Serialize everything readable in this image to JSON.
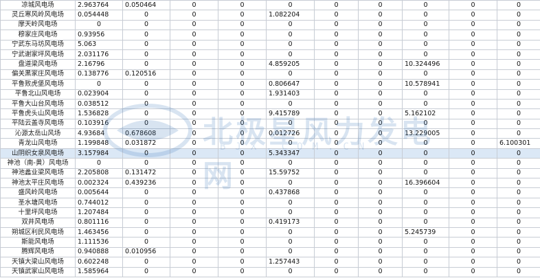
{
  "rows": [
    {
      "name": "凉城风电场",
      "c2": "2.963764",
      "c3": "0.050464",
      "c4": "0",
      "c5": "0",
      "c6": "0",
      "c7": "0",
      "c8": "0",
      "c9": "0",
      "c10": "0",
      "c11": "0"
    },
    {
      "name": "灵丘寒风岭风电场",
      "c2": "0.054448",
      "c3": "0",
      "c4": "0",
      "c5": "0",
      "c6": "1.082204",
      "c7": "0",
      "c8": "0",
      "c9": "0",
      "c10": "0",
      "c11": "0"
    },
    {
      "name": "摩天岭风电场",
      "c2": "0",
      "c3": "0",
      "c4": "0",
      "c5": "0",
      "c6": "0",
      "c7": "0",
      "c8": "0",
      "c9": "0",
      "c10": "0",
      "c11": "0"
    },
    {
      "name": "穆家庄风电场",
      "c2": "0.93956",
      "c3": "0",
      "c4": "0",
      "c5": "0",
      "c6": "0",
      "c7": "0",
      "c8": "0",
      "c9": "0",
      "c10": "0",
      "c11": "0"
    },
    {
      "name": "宁武东马坊风电场",
      "c2": "5.063",
      "c3": "0",
      "c4": "0",
      "c5": "0",
      "c6": "0",
      "c7": "0",
      "c8": "0",
      "c9": "0",
      "c10": "0",
      "c11": "0"
    },
    {
      "name": "宁武谢家坪风电场",
      "c2": "2.031176",
      "c3": "0",
      "c4": "0",
      "c5": "0",
      "c6": "0",
      "c7": "0",
      "c8": "0",
      "c9": "0",
      "c10": "0",
      "c11": "0"
    },
    {
      "name": "盘道梁风电场",
      "c2": "2.16796",
      "c3": "0",
      "c4": "0",
      "c5": "0",
      "c6": "4.859205",
      "c7": "0",
      "c8": "0",
      "c9": "10.324496",
      "c10": "0",
      "c11": "0"
    },
    {
      "name": "偏关黑家庄风电场",
      "c2": "0.138776",
      "c3": "0.120516",
      "c4": "0",
      "c5": "0",
      "c6": "0",
      "c7": "0",
      "c8": "0",
      "c9": "0",
      "c10": "0",
      "c11": "0"
    },
    {
      "name": "平鲁败虎堡风电场",
      "c2": "0",
      "c3": "0",
      "c4": "0",
      "c5": "0",
      "c6": "0.806647",
      "c7": "0",
      "c8": "0",
      "c9": "10.578941",
      "c10": "0",
      "c11": "0"
    },
    {
      "name": "平鲁北山风电场",
      "c2": "0.023904",
      "c3": "0",
      "c4": "0",
      "c5": "0",
      "c6": "1.931403",
      "c7": "0",
      "c8": "0",
      "c9": "0",
      "c10": "0",
      "c11": "0"
    },
    {
      "name": "平鲁大山台风电场",
      "c2": "0.038512",
      "c3": "0",
      "c4": "0",
      "c5": "0",
      "c6": "0",
      "c7": "0",
      "c8": "0",
      "c9": "0",
      "c10": "0",
      "c11": "0"
    },
    {
      "name": "平鲁虎头山风电场",
      "c2": "1.536828",
      "c3": "0",
      "c4": "0",
      "c5": "0",
      "c6": "9.415789",
      "c7": "0",
      "c8": "0",
      "c9": "5.162102",
      "c10": "0",
      "c11": "0"
    },
    {
      "name": "平陆云盖寺风电场",
      "c2": "0.103916",
      "c3": "0",
      "c4": "0",
      "c5": "0",
      "c6": "0",
      "c7": "0",
      "c8": "0",
      "c9": "0",
      "c10": "0",
      "c11": "0"
    },
    {
      "name": "沁源太岳山风场",
      "c2": "4.93684",
      "c3": "0.678608",
      "c4": "0",
      "c5": "0",
      "c6": "0.012726",
      "c7": "0",
      "c8": "0",
      "c9": "13.229005",
      "c10": "0",
      "c11": "0"
    },
    {
      "name": "青龙山风电场",
      "c2": "1.199848",
      "c3": "0.031872",
      "c4": "0",
      "c5": "0",
      "c6": "0",
      "c7": "0",
      "c8": "0",
      "c9": "0",
      "c10": "0",
      "c11": "6.100301"
    },
    {
      "name": "山阴织女泉风电场",
      "c2": "3.157984",
      "c3": "0",
      "c4": "0",
      "c5": "0",
      "c6": "5.343347",
      "c7": "0",
      "c8": "0",
      "c9": "0",
      "c10": "0",
      "c11": "0"
    },
    {
      "name": "神池（南-黄）风电场",
      "c2": "0",
      "c3": "0",
      "c4": "0",
      "c5": "0",
      "c6": "0",
      "c7": "0",
      "c8": "0",
      "c9": "0",
      "c10": "0",
      "c11": "0"
    },
    {
      "name": "神池蠡业梁风电场",
      "c2": "2.205808",
      "c3": "0.131472",
      "c4": "0",
      "c5": "0",
      "c6": "15.59752",
      "c7": "0",
      "c8": "0",
      "c9": "0",
      "c10": "0",
      "c11": "0"
    },
    {
      "name": "神池太平庄风电场",
      "c2": "0.002324",
      "c3": "0.439236",
      "c4": "0",
      "c5": "0",
      "c6": "0",
      "c7": "0",
      "c8": "0",
      "c9": "16.396604",
      "c10": "0",
      "c11": "0"
    },
    {
      "name": "盛风岭风电场",
      "c2": "0.005644",
      "c3": "0",
      "c4": "0",
      "c5": "0",
      "c6": "0.437868",
      "c7": "0",
      "c8": "0",
      "c9": "0",
      "c10": "0",
      "c11": "0"
    },
    {
      "name": "圣水塘风电场",
      "c2": "0.744012",
      "c3": "0",
      "c4": "0",
      "c5": "0",
      "c6": "0",
      "c7": "0",
      "c8": "0",
      "c9": "0",
      "c10": "0",
      "c11": "0"
    },
    {
      "name": "十里坪风电场",
      "c2": "1.207484",
      "c3": "0",
      "c4": "0",
      "c5": "0",
      "c6": "0",
      "c7": "0",
      "c8": "0",
      "c9": "0",
      "c10": "0",
      "c11": "0"
    },
    {
      "name": "双井风电场",
      "c2": "0.801116",
      "c3": "0",
      "c4": "0",
      "c5": "0",
      "c6": "0.419173",
      "c7": "0",
      "c8": "0",
      "c9": "0",
      "c10": "0",
      "c11": "0"
    },
    {
      "name": "朔城区利民风电场",
      "c2": "1.463456",
      "c3": "0",
      "c4": "0",
      "c5": "0",
      "c6": "0",
      "c7": "0",
      "c8": "0",
      "c9": "5.245739",
      "c10": "0",
      "c11": "0"
    },
    {
      "name": "斯能风电场",
      "c2": "1.111536",
      "c3": "0",
      "c4": "0",
      "c5": "0",
      "c6": "0",
      "c7": "0",
      "c8": "0",
      "c9": "0",
      "c10": "0",
      "c11": "0"
    },
    {
      "name": "腾辉风电场",
      "c2": "0.940888",
      "c3": "0.010956",
      "c4": "0",
      "c5": "0",
      "c6": "0",
      "c7": "0",
      "c8": "0",
      "c9": "0",
      "c10": "0",
      "c11": "0"
    },
    {
      "name": "天镇大梁山风电场",
      "c2": "0.602248",
      "c3": "0",
      "c4": "0",
      "c5": "0",
      "c6": "1.257443",
      "c7": "0",
      "c8": "0",
      "c9": "0",
      "c10": "0",
      "c11": "0"
    },
    {
      "name": "天镇武家山风电场",
      "c2": "1.585964",
      "c3": "0",
      "c4": "0",
      "c5": "0",
      "c6": "0",
      "c7": "0",
      "c8": "0",
      "c9": "0",
      "c10": "0",
      "c11": "0"
    }
  ],
  "watermark": {
    "title": "北极星风力发电网",
    "sub": "BJX.COM.CN",
    "color": "#2d6fb5"
  }
}
